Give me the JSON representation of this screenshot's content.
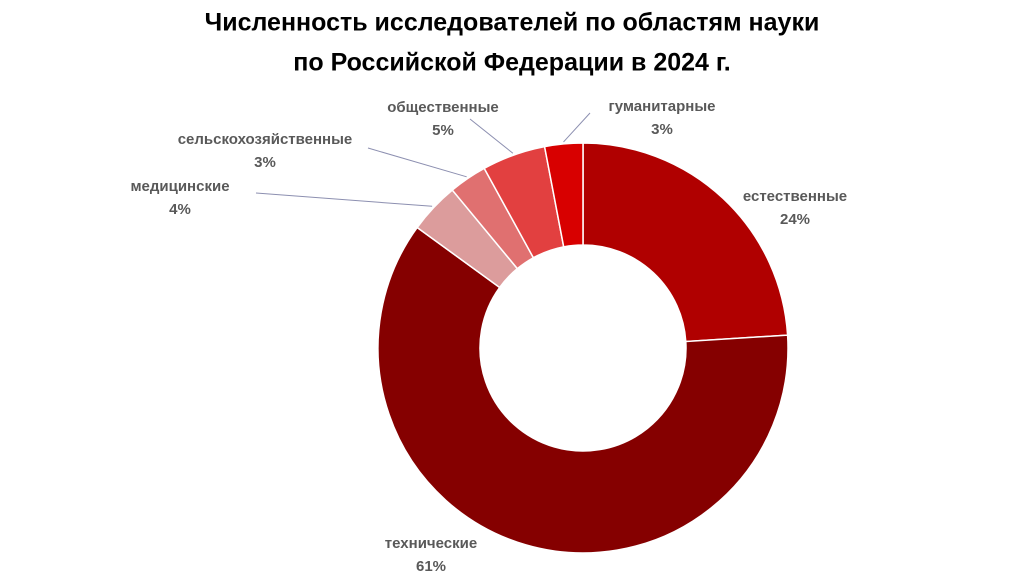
{
  "chart_data": {
    "type": "donut",
    "title": [
      "Численность исследователей по областям науки",
      "по Российской Федерации в 2024 г."
    ],
    "categories": [
      "естественные",
      "технические",
      "медицинские",
      "сельскохозяйственные",
      "общественные",
      "гуманитарные"
    ],
    "values": [
      24,
      61,
      4,
      3,
      5,
      3
    ],
    "value_labels": [
      "24%",
      "61%",
      "4%",
      "3%",
      "5%",
      "3%"
    ],
    "colors": [
      "#b00000",
      "#850000",
      "#dc9c9c",
      "#e07070",
      "#e24040",
      "#d80000"
    ]
  }
}
